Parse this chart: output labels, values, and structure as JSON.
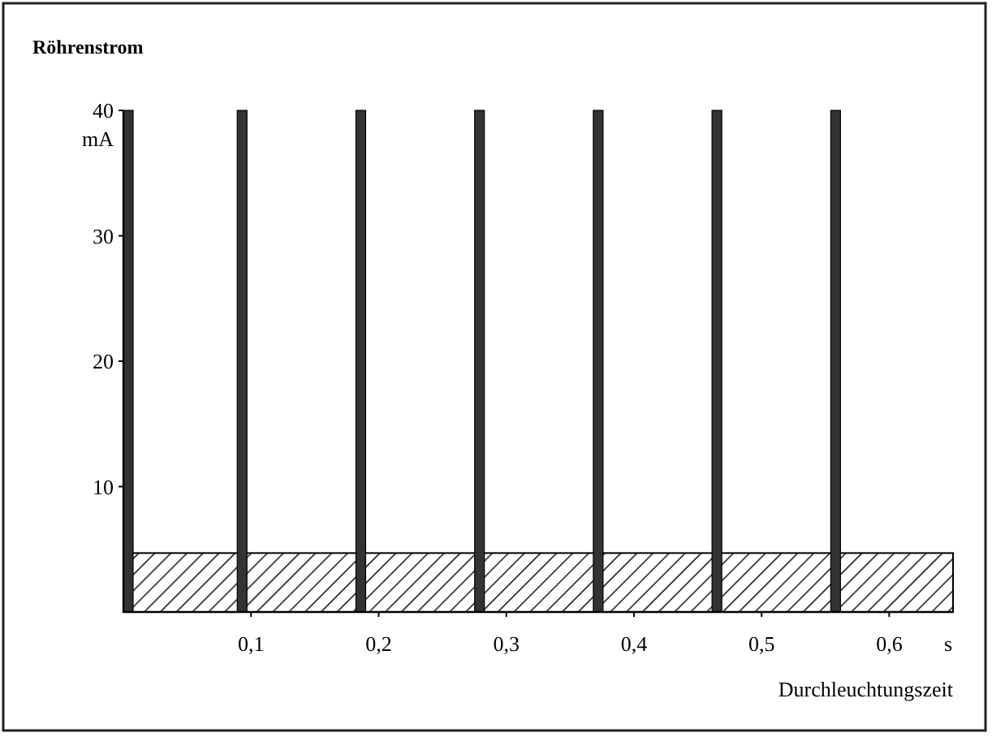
{
  "chart_data": {
    "type": "bar",
    "ylabel": "Röhrenstrom",
    "xlabel": "Durchleuchtungszeit",
    "x": [
      0,
      0.093,
      0.186,
      0.279,
      0.372,
      0.465,
      0.558
    ],
    "values": [
      40,
      40,
      40,
      40,
      40,
      40,
      40
    ],
    "color": "#333333",
    "xlim": [
      0,
      0.65
    ],
    "ylim": [
      0,
      40
    ],
    "xticks": [
      {
        "value": 0.1,
        "label": "0,1"
      },
      {
        "value": 0.2,
        "label": "0,2"
      },
      {
        "value": 0.3,
        "label": "0,3"
      },
      {
        "value": 0.4,
        "label": "0,4"
      },
      {
        "value": 0.5,
        "label": "0,5"
      },
      {
        "value": 0.6,
        "label": "0,6"
      }
    ],
    "yticks": [
      10,
      20,
      30,
      40
    ],
    "bands": [
      {
        "axis": "y",
        "from": 0,
        "to": 4.7,
        "color": "#000000"
      }
    ],
    "annotations": [
      "mA",
      "s"
    ],
    "grid": false
  }
}
